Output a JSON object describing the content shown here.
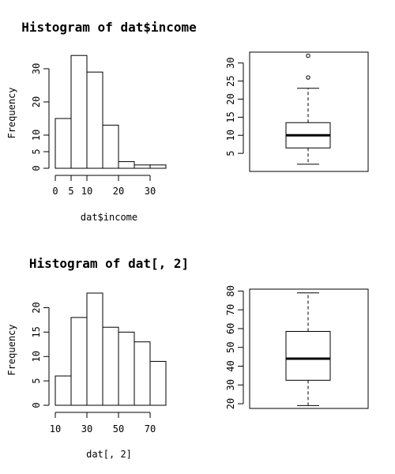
{
  "chart_data": [
    {
      "type": "bar",
      "subtype": "histogram",
      "title": "Histogram of dat$income",
      "xlabel": "dat$income",
      "ylabel": "Frequency",
      "bins": [
        [
          0,
          5
        ],
        [
          5,
          10
        ],
        [
          10,
          15
        ],
        [
          15,
          20
        ],
        [
          20,
          25
        ],
        [
          25,
          30
        ],
        [
          30,
          35
        ]
      ],
      "values": [
        15,
        34,
        29,
        13,
        2,
        1,
        1
      ],
      "xlim": [
        0,
        35
      ],
      "ylim": [
        0,
        35
      ],
      "xticks": [
        0,
        5,
        10,
        20,
        30
      ],
      "yticks": [
        0,
        5,
        10,
        20,
        30
      ],
      "bar_fill": "#ffffff",
      "bar_stroke": "#000000"
    },
    {
      "type": "boxplot",
      "title": "",
      "min": 2,
      "q1": 6.5,
      "median": 10,
      "q3": 13.5,
      "max": 23,
      "outliers": [
        26,
        32
      ],
      "ylim": [
        0,
        33
      ],
      "yticks": [
        5,
        10,
        15,
        20,
        25,
        30
      ]
    },
    {
      "type": "bar",
      "subtype": "histogram",
      "title": "Histogram of dat[, 2]",
      "xlabel": "dat[, 2]",
      "ylabel": "Frequency",
      "bins": [
        [
          10,
          20
        ],
        [
          20,
          30
        ],
        [
          30,
          40
        ],
        [
          40,
          50
        ],
        [
          50,
          60
        ],
        [
          60,
          70
        ],
        [
          70,
          80
        ]
      ],
      "values": [
        6,
        18,
        23,
        16,
        15,
        13,
        9
      ],
      "xlim": [
        10,
        80
      ],
      "ylim": [
        0,
        23
      ],
      "xticks": [
        10,
        30,
        50,
        70
      ],
      "yticks": [
        0,
        5,
        10,
        15,
        20
      ],
      "bar_fill": "#ffffff",
      "bar_stroke": "#000000"
    },
    {
      "type": "boxplot",
      "title": "",
      "min": 19,
      "q1": 32.5,
      "median": 44,
      "q3": 58.5,
      "max": 79,
      "outliers": [],
      "ylim": [
        17.5,
        81
      ],
      "yticks": [
        20,
        30,
        40,
        50,
        60,
        70,
        80
      ]
    }
  ]
}
